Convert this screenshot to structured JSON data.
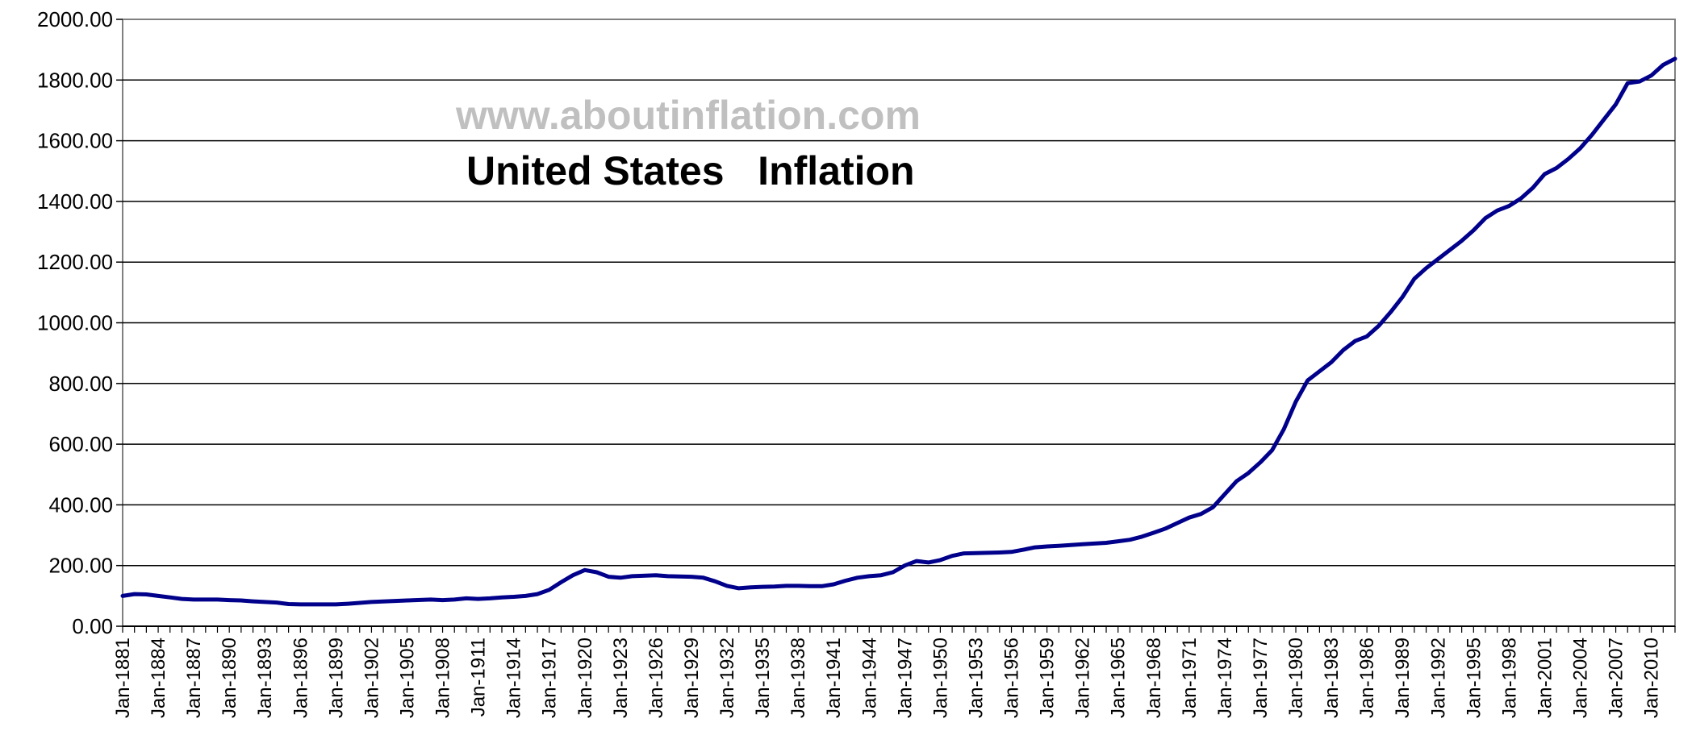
{
  "chart_data": {
    "type": "line",
    "title": "United States   Inflation",
    "watermark": "www.aboutinflation.com",
    "xlabel": "",
    "ylabel": "",
    "ylim": [
      0,
      2000
    ],
    "yticks": [
      "0.00",
      "200.00",
      "400.00",
      "600.00",
      "800.00",
      "1000.00",
      "1200.00",
      "1400.00",
      "1600.00",
      "1800.00",
      "2000.00"
    ],
    "xticks": [
      "Jan-1881",
      "Jan-1884",
      "Jan-1887",
      "Jan-1890",
      "Jan-1893",
      "Jan-1896",
      "Jan-1899",
      "Jan-1902",
      "Jan-1905",
      "Jan-1908",
      "Jan-1911",
      "Jan-1914",
      "Jan-1917",
      "Jan-1920",
      "Jan-1923",
      "Jan-1926",
      "Jan-1929",
      "Jan-1932",
      "Jan-1935",
      "Jan-1938",
      "Jan-1941",
      "Jan-1944",
      "Jan-1947",
      "Jan-1950",
      "Jan-1953",
      "Jan-1956",
      "Jan-1959",
      "Jan-1962",
      "Jan-1965",
      "Jan-1968",
      "Jan-1971",
      "Jan-1974",
      "Jan-1977",
      "Jan-1980",
      "Jan-1983",
      "Jan-1986",
      "Jan-1989",
      "Jan-1992",
      "Jan-1995",
      "Jan-1998",
      "Jan-2001",
      "Jan-2004",
      "Jan-2007",
      "Jan-2010"
    ],
    "xlim": [
      1881,
      2012
    ],
    "grid": true,
    "line_color": "#00008B",
    "series": [
      {
        "x": [
          1881,
          1882,
          1883,
          1884,
          1885,
          1886,
          1887,
          1888,
          1889,
          1890,
          1891,
          1892,
          1893,
          1894,
          1895,
          1896,
          1897,
          1898,
          1899,
          1900,
          1902,
          1905,
          1907,
          1908,
          1909,
          1910,
          1911,
          1912,
          1913,
          1914,
          1915,
          1916,
          1917,
          1918,
          1919,
          1920,
          1921,
          1922,
          1923,
          1924,
          1926,
          1927,
          1929,
          1930,
          1931,
          1932,
          1933,
          1934,
          1935,
          1936,
          1937,
          1938,
          1939,
          1940,
          1941,
          1942,
          1943,
          1944,
          1945,
          1946,
          1947,
          1948,
          1949,
          1950,
          1951,
          1952,
          1953,
          1954,
          1955,
          1956,
          1957,
          1958,
          1959,
          1960,
          1962,
          1964,
          1965,
          1966,
          1967,
          1968,
          1969,
          1970,
          1971,
          1972,
          1973,
          1974,
          1975,
          1976,
          1977,
          1978,
          1979,
          1980,
          1981,
          1982,
          1983,
          1984,
          1985,
          1986,
          1987,
          1988,
          1989,
          1990,
          1991,
          1992,
          1993,
          1994,
          1995,
          1996,
          1997,
          1998,
          1999,
          2000,
          2001,
          2002,
          2003,
          2004,
          2005,
          2006,
          2007,
          2008,
          2009,
          2010,
          2011,
          2012
        ],
        "values": [
          100,
          106,
          105,
          100,
          95,
          90,
          88,
          88,
          88,
          86,
          85,
          82,
          80,
          78,
          73,
          72,
          72,
          72,
          72,
          74,
          80,
          85,
          88,
          86,
          88,
          92,
          90,
          92,
          95,
          97,
          100,
          106,
          120,
          145,
          168,
          185,
          178,
          163,
          160,
          165,
          168,
          165,
          163,
          160,
          148,
          133,
          125,
          128,
          130,
          131,
          133,
          133,
          132,
          132,
          138,
          150,
          160,
          165,
          168,
          178,
          200,
          215,
          210,
          218,
          232,
          240,
          241,
          242,
          243,
          245,
          252,
          260,
          263,
          265,
          270,
          275,
          280,
          285,
          295,
          308,
          322,
          340,
          358,
          370,
          392,
          435,
          478,
          505,
          540,
          580,
          650,
          740,
          810,
          840,
          870,
          910,
          940,
          955,
          990,
          1035,
          1085,
          1145,
          1180,
          1210,
          1240,
          1270,
          1305,
          1345,
          1370,
          1385,
          1410,
          1445,
          1490,
          1510,
          1540,
          1575,
          1620,
          1670,
          1720,
          1790,
          1795,
          1815,
          1850,
          1870
        ]
      }
    ]
  }
}
